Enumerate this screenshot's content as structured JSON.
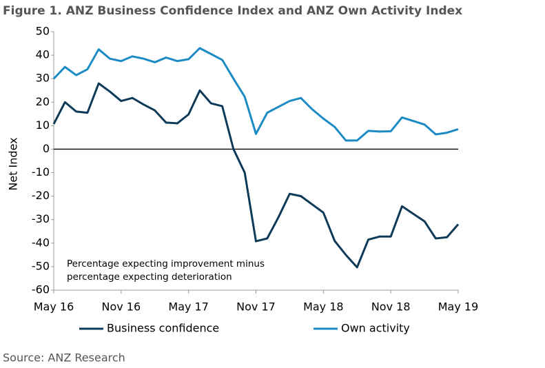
{
  "chart_data": {
    "type": "line",
    "title": "Figure 1. ANZ Business Confidence Index and ANZ Own Activity Index",
    "y_label": "Net Index",
    "annotations": [
      "Percentage expecting improvement minus",
      "percentage expecting deterioration"
    ],
    "source": "Source: ANZ Research",
    "categories": [
      "May 16",
      null,
      null,
      null,
      null,
      null,
      "Nov 16",
      null,
      null,
      null,
      null,
      null,
      "May 17",
      null,
      null,
      null,
      null,
      null,
      "Nov 17",
      null,
      null,
      null,
      null,
      null,
      "May 18",
      null,
      null,
      null,
      null,
      null,
      "Nov 18",
      null,
      null,
      null,
      null,
      null,
      "May 19"
    ],
    "series": [
      {
        "name": "Business confidence",
        "color": "#0d3a58",
        "values": [
          10.7,
          20,
          16,
          15.5,
          28,
          24.5,
          20.5,
          21.8,
          19,
          16.5,
          11.3,
          11,
          14.8,
          25,
          19.5,
          18.3,
          0,
          -10,
          -39.2,
          -38,
          -29,
          -19,
          -20,
          -23.5,
          -27,
          -39,
          -45,
          -50.3,
          -38.5,
          -37.2,
          -37.2,
          -24.3,
          -27.5,
          -30.7,
          -38,
          -37.5,
          -32
        ]
      },
      {
        "name": "Own activity",
        "color": "#1c8bc3",
        "values": [
          30,
          35,
          31.5,
          34,
          42.5,
          38.5,
          37.5,
          39.5,
          38.5,
          37,
          39,
          37.5,
          38.3,
          43,
          40.5,
          38,
          30,
          22.3,
          6.5,
          15.5,
          18,
          20.5,
          21.8,
          17,
          13,
          9.5,
          3.7,
          3.7,
          7.8,
          7.5,
          7.6,
          13.5,
          12,
          10.5,
          6.3,
          7,
          8.5
        ]
      }
    ],
    "ylim": [
      -60,
      50
    ],
    "yticks": [
      -60,
      -50,
      -40,
      -30,
      -20,
      -10,
      0,
      10,
      20,
      30,
      40,
      50
    ],
    "zero_line": true,
    "legend": "bottom"
  }
}
